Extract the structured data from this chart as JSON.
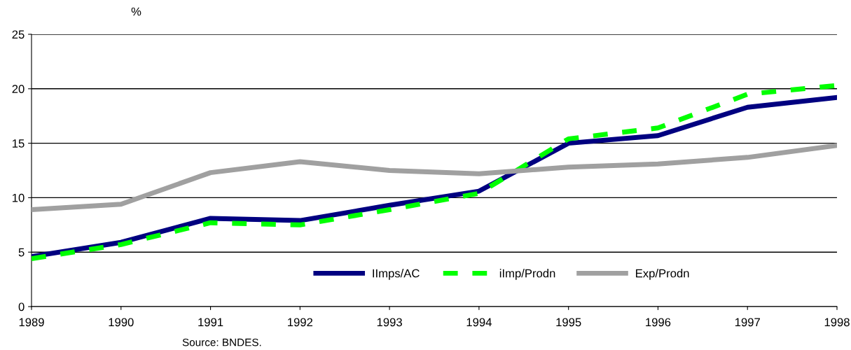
{
  "chart_data": {
    "type": "line",
    "ylabel": "%",
    "categories": [
      "1989",
      "1990",
      "1991",
      "1992",
      "1993",
      "1994",
      "1995",
      "1996",
      "1997",
      "1998"
    ],
    "series": [
      {
        "name": "IImps/AC",
        "color": "#000080",
        "line_style": "solid",
        "values": [
          4.6,
          5.9,
          8.1,
          7.9,
          9.3,
          10.6,
          15.0,
          15.7,
          18.3,
          19.2
        ]
      },
      {
        "name": "iImp/Prodn",
        "color": "#00ff00",
        "line_style": "dashed",
        "values": [
          4.4,
          5.7,
          7.7,
          7.5,
          8.9,
          10.4,
          15.4,
          16.4,
          19.5,
          20.3
        ]
      },
      {
        "name": "Exp/Prodn",
        "color": "#a0a0a0",
        "line_style": "solid",
        "values": [
          8.9,
          9.4,
          12.3,
          13.3,
          12.5,
          12.2,
          12.8,
          13.1,
          13.7,
          14.8
        ]
      }
    ],
    "ylim": [
      0,
      25
    ],
    "yticks": [
      0,
      5,
      10,
      15,
      20,
      25
    ],
    "grid": "y",
    "legend": "bottom right",
    "marker": "none",
    "annotations": [
      "Source: BNDES."
    ]
  }
}
